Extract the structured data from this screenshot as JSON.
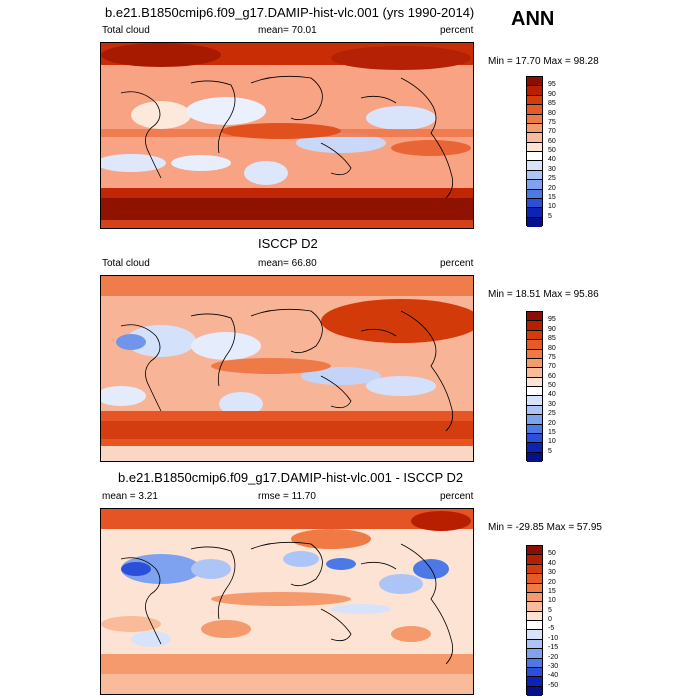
{
  "season": "ANN",
  "panels": [
    {
      "title": "b.e21.B1850cmip6.f09_g17.DAMIP-hist-vlc.001 (yrs 1990-2014)",
      "left": "Total cloud",
      "center": "mean=  70.01",
      "right": "percent",
      "minmax": "Min =  17.70 Max =  98.28",
      "colorbar": [
        "95",
        "90",
        "85",
        "80",
        "75",
        "70",
        "60",
        "50",
        "40",
        "30",
        "25",
        "20",
        "15",
        "10",
        "5"
      ],
      "colors": [
        "#8b0e00",
        "#b81f00",
        "#d53b0b",
        "#e55a26",
        "#ef7a45",
        "#f59a6c",
        "#f9bb9a",
        "#fde3d3",
        "#ffffff",
        "#d6e3fb",
        "#adc5f6",
        "#7ea2ef",
        "#4d79e6",
        "#2b4fd8",
        "#0d23b5",
        "#05108a"
      ]
    },
    {
      "title": "ISCCP D2",
      "left": "Total cloud",
      "center": "mean=  66.80",
      "right": "percent",
      "minmax": "Min =  18.51 Max =  95.86",
      "colorbar": [
        "95",
        "90",
        "85",
        "80",
        "75",
        "70",
        "60",
        "50",
        "40",
        "30",
        "25",
        "20",
        "15",
        "10",
        "5"
      ],
      "colors": [
        "#8b0e00",
        "#b81f00",
        "#d53b0b",
        "#e55a26",
        "#ef7a45",
        "#f59a6c",
        "#f9bb9a",
        "#fde3d3",
        "#ffffff",
        "#d6e3fb",
        "#adc5f6",
        "#7ea2ef",
        "#4d79e6",
        "#2b4fd8",
        "#0d23b5",
        "#05108a"
      ]
    },
    {
      "title": "b.e21.B1850cmip6.f09_g17.DAMIP-hist-vlc.001 - ISCCP D2",
      "left": "mean =   3.21",
      "center": "rmse =  11.70",
      "right": "percent",
      "minmax": "Min = -29.85 Max =  57.95",
      "colorbar": [
        "50",
        "40",
        "30",
        "20",
        "15",
        "10",
        "5",
        "0",
        "-5",
        "-10",
        "-15",
        "-20",
        "-30",
        "-40",
        "-50"
      ],
      "colors": [
        "#8b0e00",
        "#b81f00",
        "#d53b0b",
        "#e55a26",
        "#ef7a45",
        "#f59a6c",
        "#f9bb9a",
        "#fde3d3",
        "#ffffff",
        "#d6e3fb",
        "#adc5f6",
        "#7ea2ef",
        "#4d79e6",
        "#2b4fd8",
        "#0d23b5",
        "#05108a"
      ]
    }
  ]
}
